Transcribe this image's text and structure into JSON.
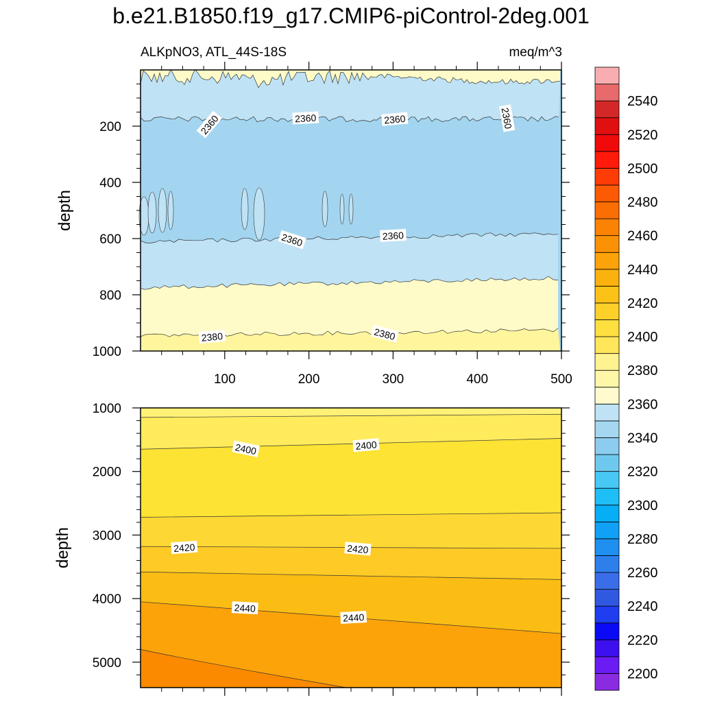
{
  "chart_data": [
    {
      "type": "contour",
      "panel": "upper",
      "title": "b.e21.B1850.f19_g17.CMIP6-piControl-2deg.001",
      "left_string": "ALKpNO3, ATL_44S-18S",
      "right_string": "meq/m^3",
      "xlabel": "",
      "ylabel": "depth",
      "xlim": [
        0,
        500
      ],
      "ylim": [
        0,
        1000
      ],
      "y_reversed": true,
      "xticks": [
        100,
        200,
        300,
        400,
        500
      ],
      "xtick_labels": [
        "100",
        "200",
        "300",
        "400",
        "500"
      ],
      "yticks": [
        200,
        400,
        600,
        800,
        1000
      ],
      "ytick_labels": [
        "200",
        "400",
        "600",
        "800",
        "1000"
      ],
      "bands": [
        {
          "level_range": [
            2380,
            2385
          ],
          "color": "#fffbc8",
          "depth_top": 0,
          "depth_bottom": 40,
          "note": "near-surface patches"
        },
        {
          "level_range": [
            2360,
            2365
          ],
          "color": "#bfe2f4",
          "depth_top": 40,
          "depth_bottom": 190
        },
        {
          "level_range": [
            2355,
            2360
          ],
          "color": "#a3d5f0",
          "depth_top": 190,
          "depth_bottom": 600
        },
        {
          "level_range": [
            2360,
            2365
          ],
          "color": "#bfe2f4",
          "depth_top": 600,
          "depth_bottom": 770
        },
        {
          "level_range": [
            2380,
            2385
          ],
          "color": "#fffbc8",
          "depth_top": 770,
          "depth_bottom": 935
        },
        {
          "level_range": [
            2385,
            2390
          ],
          "color": "#fff59d",
          "depth_top": 935,
          "depth_bottom": 1000
        }
      ],
      "contour_labels": [
        {
          "text": "2360",
          "x": 82,
          "y": 195,
          "angle": -50
        },
        {
          "text": "2360",
          "x": 196,
          "y": 172,
          "angle": -3
        },
        {
          "text": "2360",
          "x": 302,
          "y": 176,
          "angle": -5
        },
        {
          "text": "2360",
          "x": 435,
          "y": 172,
          "angle": 80
        },
        {
          "text": "2360",
          "x": 180,
          "y": 605,
          "angle": 18
        },
        {
          "text": "2360",
          "x": 300,
          "y": 590,
          "angle": -3
        },
        {
          "text": "2380",
          "x": 85,
          "y": 950,
          "angle": -5
        },
        {
          "text": "2380",
          "x": 290,
          "y": 940,
          "angle": 15
        }
      ]
    },
    {
      "type": "contour",
      "panel": "lower",
      "xlabel": "",
      "ylabel": "depth",
      "xlim": [
        0,
        500
      ],
      "ylim": [
        1000,
        5400
      ],
      "y_reversed": true,
      "yticks": [
        1000,
        2000,
        3000,
        4000,
        5000
      ],
      "ytick_labels": [
        "1000",
        "2000",
        "3000",
        "4000",
        "5000"
      ],
      "bands": [
        {
          "level_range": [
            2390,
            2395
          ],
          "color": "#fff176",
          "depth_left_top": 1000,
          "depth_right_top": 1000
        },
        {
          "level_range": [
            2395,
            2400
          ],
          "color": "#ffeb5c",
          "depth_left_top": 1150,
          "depth_right_top": 1100
        },
        {
          "level_range": [
            2400,
            2405
          ],
          "color": "#fde333",
          "depth_left_top": 1650,
          "depth_right_top": 1480
        },
        {
          "level_range": [
            2405,
            2410
          ],
          "color": "#fdd835",
          "depth_left_top": 2720,
          "depth_right_top": 2650
        },
        {
          "level_range": [
            2415,
            2420
          ],
          "color": "#fdca26",
          "depth_left_top": 3180,
          "depth_right_top": 3210
        },
        {
          "level_range": [
            2420,
            2425
          ],
          "color": "#fbbc14",
          "depth_left_top": 3580,
          "depth_right_top": 3700
        },
        {
          "level_range": [
            2435,
            2440
          ],
          "color": "#fca309",
          "depth_left_top": 4050,
          "depth_right_top": 4550
        },
        {
          "level_range": [
            2445,
            2450
          ],
          "color": "#fb8a00",
          "depth_left_top": 4800,
          "depth_right_top": 5400
        }
      ],
      "contour_labels": [
        {
          "text": "2400",
          "x": 125,
          "y": 1650,
          "angle": 12
        },
        {
          "text": "2400",
          "x": 268,
          "y": 1590,
          "angle": -5
        },
        {
          "text": "2420",
          "x": 52,
          "y": 3200,
          "angle": -4
        },
        {
          "text": "2420",
          "x": 258,
          "y": 3220,
          "angle": 5
        },
        {
          "text": "2440",
          "x": 124,
          "y": 4150,
          "angle": 3
        },
        {
          "text": "2440",
          "x": 253,
          "y": 4300,
          "angle": -3
        }
      ]
    }
  ],
  "colorbar": {
    "levels": [
      2200,
      2210,
      2220,
      2230,
      2240,
      2250,
      2260,
      2270,
      2280,
      2290,
      2300,
      2310,
      2320,
      2330,
      2340,
      2350,
      2360,
      2370,
      2380,
      2390,
      2400,
      2410,
      2420,
      2430,
      2440,
      2450,
      2460,
      2470,
      2480,
      2490,
      2500,
      2510,
      2520,
      2530,
      2540,
      2550
    ],
    "colors": [
      "#8a2be2",
      "#6a1cf2",
      "#3d10f0",
      "#0a0af6",
      "#1e3ef0",
      "#3158e0",
      "#3a6ee8",
      "#2d7fec",
      "#1f90f0",
      "#10a0f5",
      "#06aef5",
      "#1ebef6",
      "#48c8f4",
      "#6fc9ef",
      "#8cccee",
      "#a5d7f1",
      "#bfe3f4",
      "#fffbcf",
      "#fff7a8",
      "#fff291",
      "#ffe65a",
      "#fde040",
      "#fdd02a",
      "#fcc218",
      "#fbb20e",
      "#fca309",
      "#fb9206",
      "#fb8203",
      "#fb6e03",
      "#fd5a03",
      "#fe3c06",
      "#ff1a0a",
      "#f00a0a",
      "#e01010",
      "#d42828",
      "#e86a6a",
      "#f8aeb0"
    ],
    "label_levels": [
      "2200",
      "2220",
      "2240",
      "2260",
      "2280",
      "2300",
      "2320",
      "2340",
      "2360",
      "2380",
      "2400",
      "2420",
      "2440",
      "2460",
      "2480",
      "2500",
      "2520",
      "2540"
    ]
  }
}
